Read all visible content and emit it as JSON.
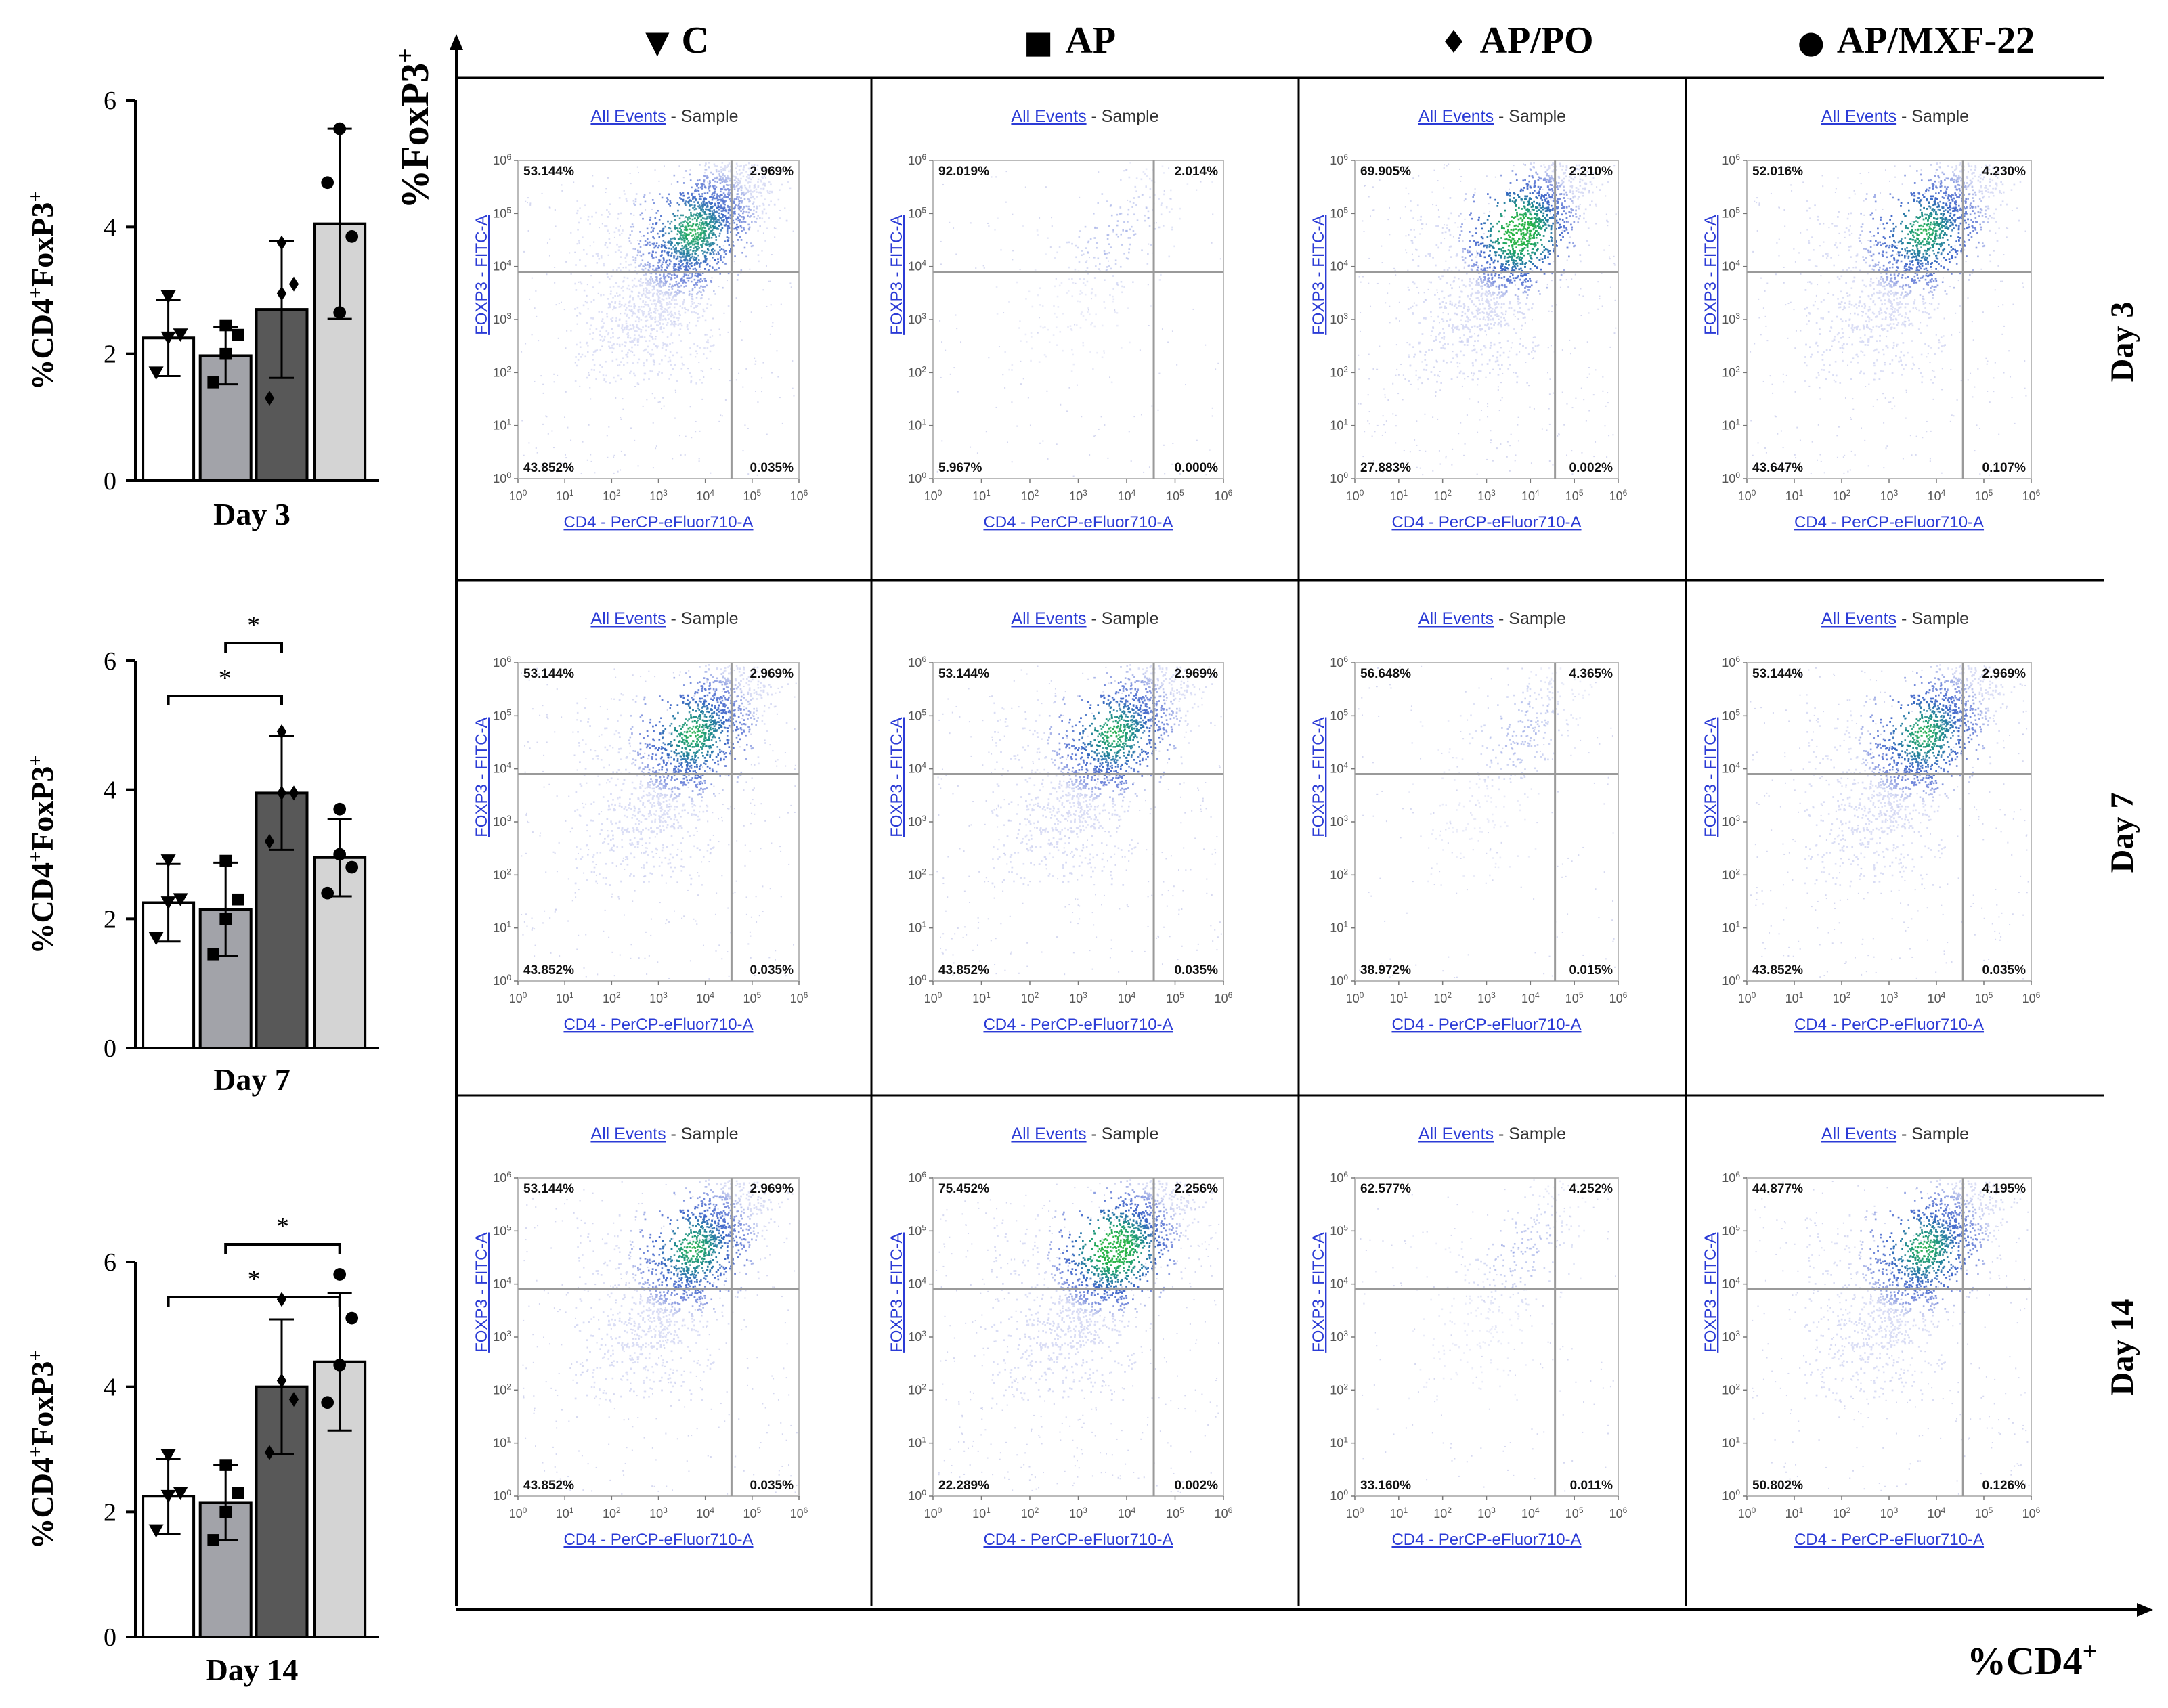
{
  "chart_data": {
    "type": "bar",
    "description_note": "Composite figure: bar charts of %CD4+FoxP3+ per group on days 3, 7, 14 plus 4x3 grid of flow cytometry quadrant plots.",
    "bar_charts": [
      {
        "title": "Day 3",
        "ylabel_parts": [
          "%CD4",
          "+",
          "FoxP3",
          "+"
        ],
        "ylim": [
          0,
          6
        ],
        "yticks": [
          "0",
          "2",
          "4",
          "6"
        ],
        "categories": [
          "C",
          "AP",
          "AP/PO",
          "AP/MXF-22"
        ],
        "values": [
          2.25,
          1.97,
          2.7,
          4.05
        ],
        "errors": [
          0.6,
          0.45,
          1.08,
          1.5
        ],
        "points": [
          [
            2.9,
            1.7,
            2.25,
            2.3
          ],
          [
            2.45,
            1.55,
            2.0,
            2.3
          ],
          [
            3.75,
            1.3,
            2.95,
            3.1
          ],
          [
            5.55,
            4.7,
            2.65,
            3.85
          ]
        ],
        "significance": [],
        "colors": [
          "#ffffff",
          "#a2a3a9",
          "#585858",
          "#d4d4d4"
        ]
      },
      {
        "title": "Day 7",
        "ylabel_parts": [
          "%CD4",
          "+",
          "FoxP3",
          "+"
        ],
        "ylim": [
          0,
          6
        ],
        "yticks": [
          "0",
          "2",
          "4",
          "6"
        ],
        "categories": [
          "C",
          "AP",
          "AP/PO",
          "AP/MXF-22"
        ],
        "values": [
          2.25,
          2.15,
          3.95,
          2.95
        ],
        "errors": [
          0.6,
          0.72,
          0.88,
          0.6
        ],
        "points": [
          [
            2.9,
            1.7,
            2.25,
            2.3
          ],
          [
            2.9,
            1.45,
            2.0,
            2.3
          ],
          [
            4.9,
            3.2,
            3.95,
            3.95
          ],
          [
            3.7,
            2.4,
            3.0,
            2.8
          ]
        ],
        "significance": [
          {
            "from": 0,
            "to": 2,
            "label": "*",
            "level": 1
          },
          {
            "from": 1,
            "to": 2,
            "label": "*",
            "level": 2
          }
        ],
        "colors": [
          "#ffffff",
          "#a2a3a9",
          "#585858",
          "#d4d4d4"
        ]
      },
      {
        "title": "Day 14",
        "ylabel_parts": [
          "%CD4",
          "+",
          "FoxP3",
          "+"
        ],
        "ylim": [
          0,
          6
        ],
        "yticks": [
          "0",
          "2",
          "4",
          "6"
        ],
        "categories": [
          "C",
          "AP",
          "AP/PO",
          "AP/MXF-22"
        ],
        "values": [
          2.25,
          2.15,
          4.0,
          4.4
        ],
        "errors": [
          0.6,
          0.6,
          1.08,
          1.1
        ],
        "points": [
          [
            2.9,
            1.7,
            2.25,
            2.3
          ],
          [
            2.75,
            1.55,
            2.0,
            2.3
          ],
          [
            5.4,
            2.95,
            4.1,
            3.8
          ],
          [
            5.8,
            3.75,
            4.35,
            5.1
          ]
        ],
        "significance": [
          {
            "from": 0,
            "to": 3,
            "label": "*",
            "level": 1
          },
          {
            "from": 1,
            "to": 3,
            "label": "*",
            "level": 2
          }
        ],
        "colors": [
          "#ffffff",
          "#a2a3a9",
          "#585858",
          "#d4d4d4"
        ]
      }
    ],
    "flow_grid": {
      "columns": [
        {
          "symbol": "▼",
          "label": "C"
        },
        {
          "symbol": "■",
          "label": "AP"
        },
        {
          "symbol": "♦",
          "label": "AP/PO"
        },
        {
          "symbol": "●",
          "label": "AP/MXF-22"
        }
      ],
      "rows": [
        "Day 3",
        "Day 7",
        "Day 14"
      ],
      "y_axis_title": "%FoxP3",
      "y_axis_sup": "+",
      "x_axis_title": "%CD4",
      "x_axis_sup": "+",
      "plot_header_link": "All Events",
      "plot_header_rest": " - Sample",
      "x_label": "CD4 - PerCP-eFluor710-A",
      "y_label": "FOXP3 - FITC-A",
      "tick_exponents": [
        "0",
        "1",
        "2",
        "3",
        "4",
        "5",
        "6"
      ],
      "plots": [
        [
          {
            "q": [
              "53.144%",
              "2.969%",
              "43.852%",
              "0.035%"
            ],
            "density": 1.0
          },
          {
            "q": [
              "92.019%",
              "2.014%",
              "5.967%",
              "0.000%"
            ],
            "density": 0.12
          },
          {
            "q": [
              "69.905%",
              "2.210%",
              "27.883%",
              "0.002%"
            ],
            "density": 1.3
          },
          {
            "q": [
              "52.016%",
              "4.230%",
              "43.647%",
              "0.107%"
            ],
            "density": 1.0
          }
        ],
        [
          {
            "q": [
              "53.144%",
              "2.969%",
              "43.852%",
              "0.035%"
            ],
            "density": 1.0
          },
          {
            "q": [
              "53.144%",
              "2.969%",
              "43.852%",
              "0.035%"
            ],
            "density": 1.0
          },
          {
            "q": [
              "56.648%",
              "4.365%",
              "38.972%",
              "0.015%"
            ],
            "density": 0.14
          },
          {
            "q": [
              "53.144%",
              "2.969%",
              "43.852%",
              "0.035%"
            ],
            "density": 1.0
          }
        ],
        [
          {
            "q": [
              "53.144%",
              "2.969%",
              "43.852%",
              "0.035%"
            ],
            "density": 1.0
          },
          {
            "q": [
              "75.452%",
              "2.256%",
              "22.289%",
              "0.002%"
            ],
            "density": 1.3
          },
          {
            "q": [
              "62.577%",
              "4.252%",
              "33.160%",
              "0.011%"
            ],
            "density": 0.14
          },
          {
            "q": [
              "44.877%",
              "4.195%",
              "50.802%",
              "0.126%"
            ],
            "density": 1.0
          }
        ]
      ]
    }
  }
}
